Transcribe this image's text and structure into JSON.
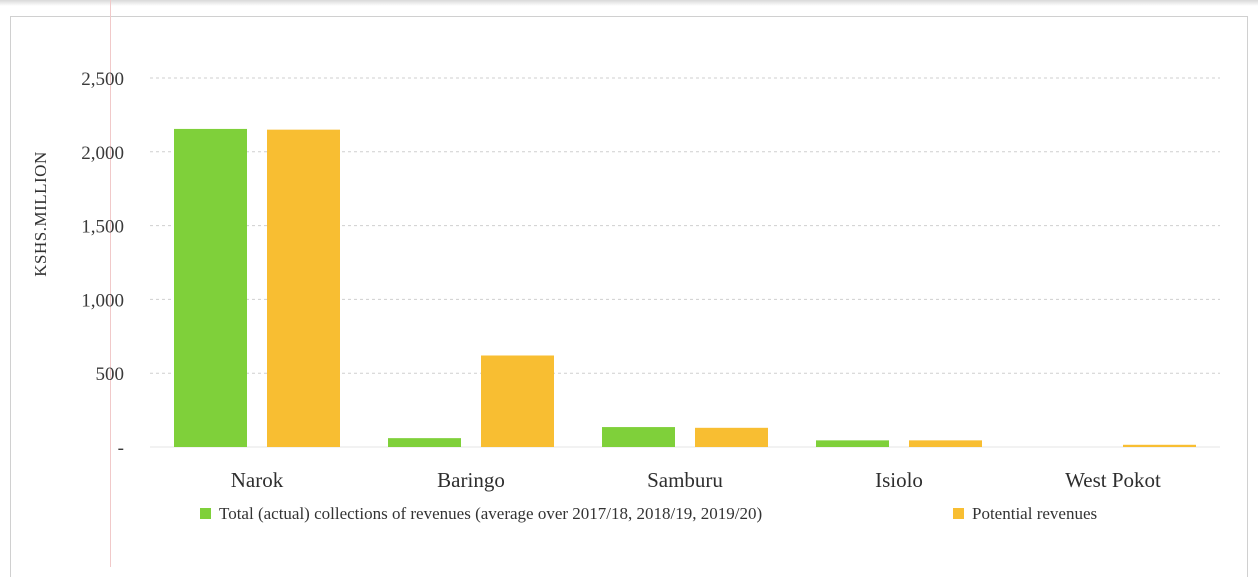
{
  "chart_data": {
    "type": "bar",
    "title": "",
    "xlabel": "",
    "ylabel": "KSHS.MILLION",
    "ylim": [
      0,
      2500
    ],
    "yticks": [
      0,
      500,
      1000,
      1500,
      2000,
      2500
    ],
    "ytick_labels": [
      "-",
      "500",
      "1,000",
      "1,500",
      "2,000",
      "2,500"
    ],
    "categories": [
      "Narok",
      "Baringo",
      "Samburu",
      "Isiolo",
      "West Pokot"
    ],
    "series": [
      {
        "name": "Total (actual) collections of revenues (average over 2017/18, 2018/19, 2019/20)",
        "color": "#7fd03a",
        "values": [
          2155,
          60,
          135,
          45,
          0
        ]
      },
      {
        "name": "Potential revenues",
        "color": "#f8be32",
        "values": [
          2150,
          620,
          130,
          45,
          15
        ]
      }
    ],
    "grid": true,
    "legend_position": "bottom"
  }
}
